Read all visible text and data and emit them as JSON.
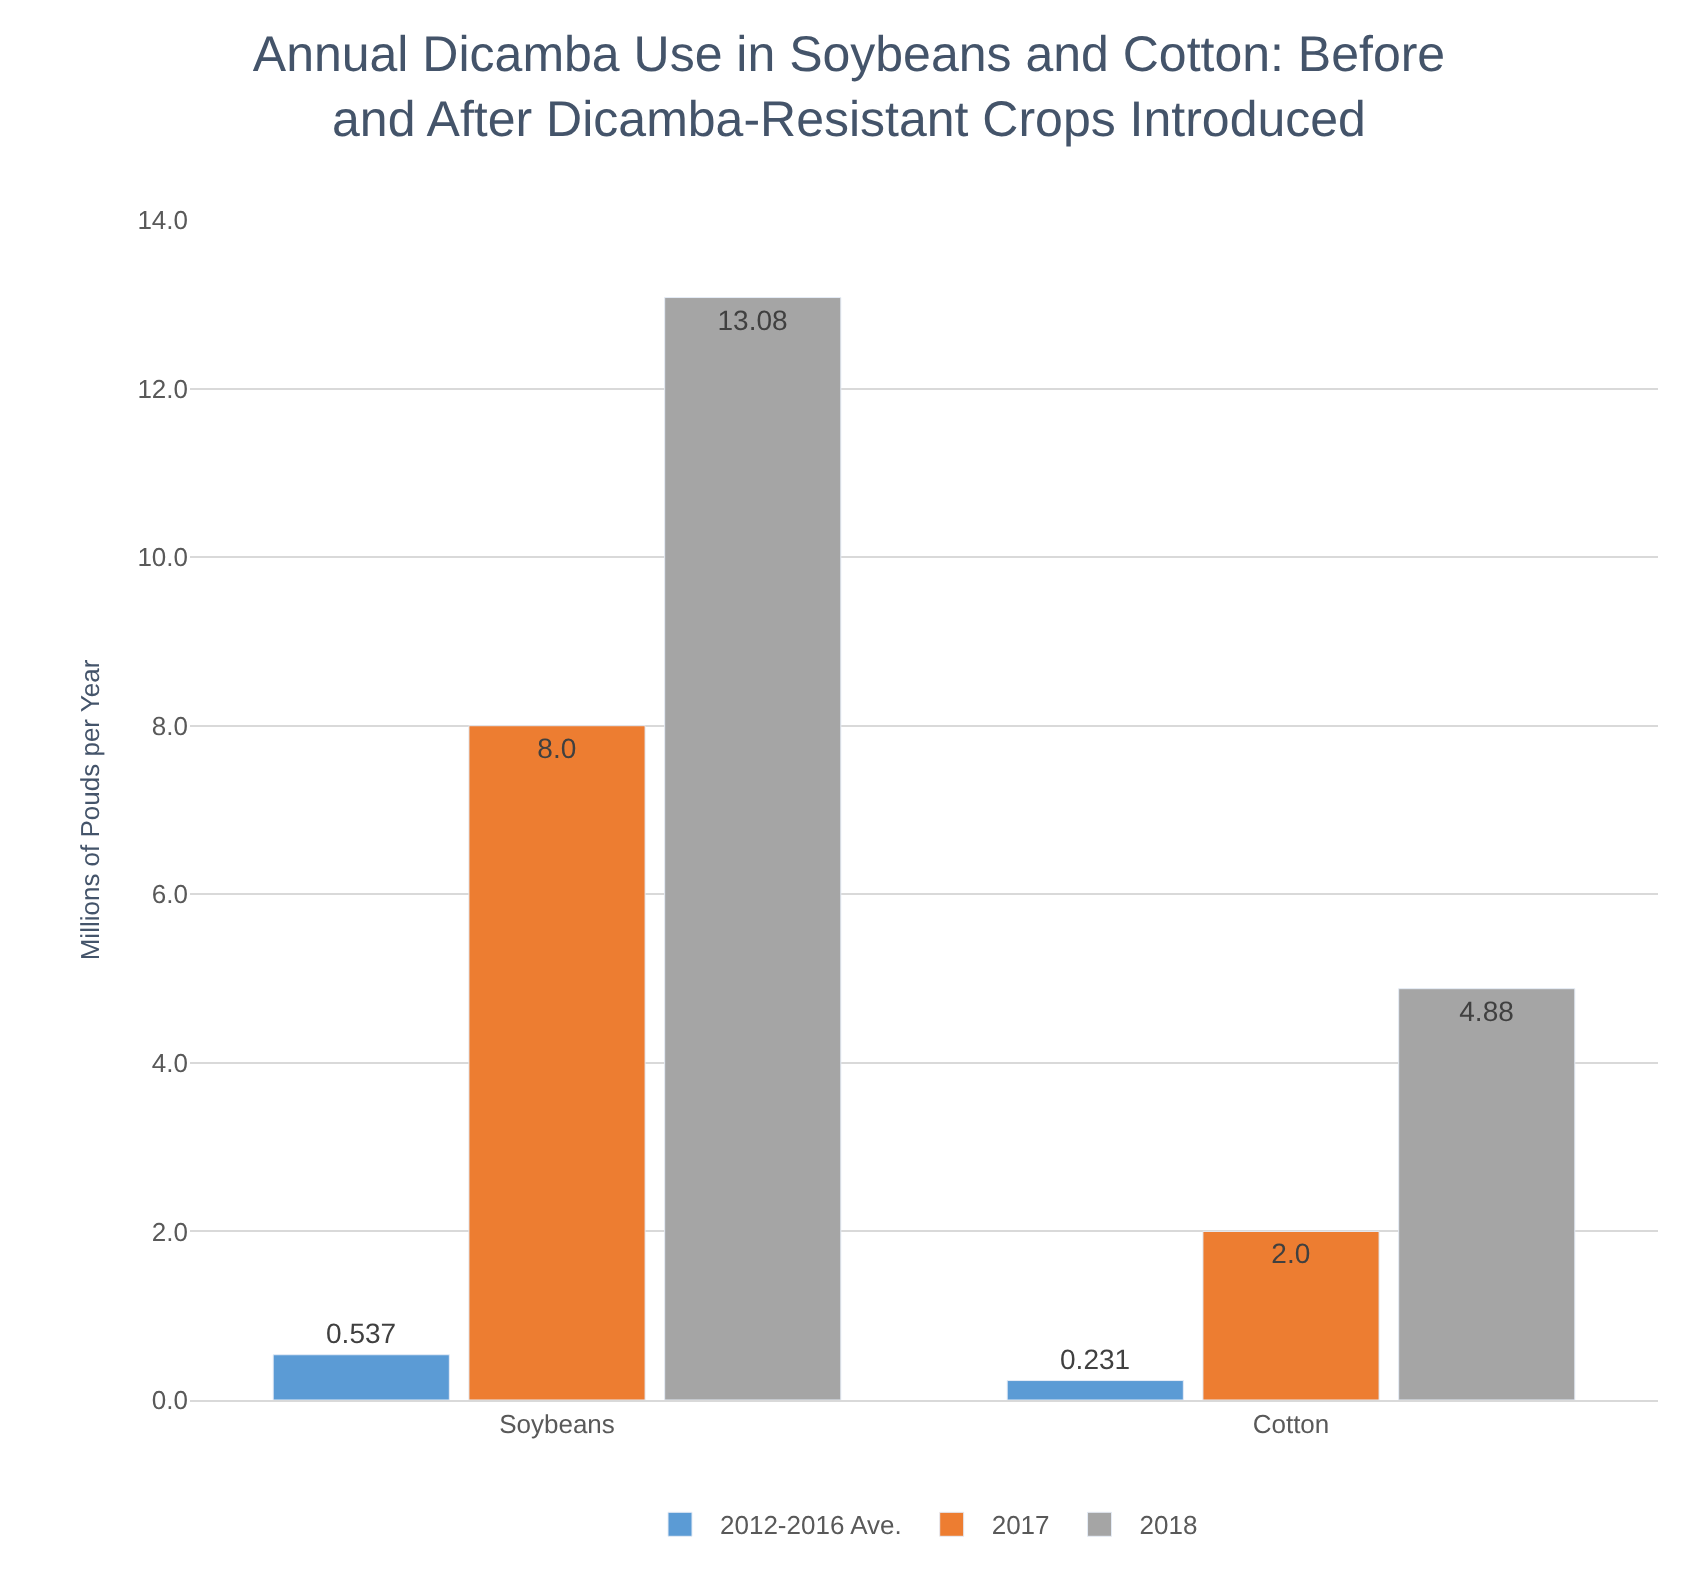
{
  "chart_data": {
    "type": "bar",
    "title": "Annual Dicamba Use in Soybeans and Cotton: Before and After Dicamba-Resistant Crops Introduced",
    "ylabel": "Millions of Pouds per Year",
    "categories": [
      "Soybeans",
      "Cotton"
    ],
    "series": [
      {
        "name": "2012-2016 Ave.",
        "color": "#5b9bd5",
        "values": [
          0.537,
          0.231
        ],
        "value_labels": [
          "0.537",
          "0.231"
        ]
      },
      {
        "name": "2017",
        "color": "#ed7d31",
        "values": [
          8.0,
          2.0
        ],
        "value_labels": [
          "8.0",
          "2.0"
        ]
      },
      {
        "name": "2018",
        "color": "#a5a5a5",
        "values": [
          13.08,
          4.88
        ],
        "value_labels": [
          "13.08",
          "4.88"
        ]
      }
    ],
    "ylim": [
      0,
      14
    ],
    "yticks": [
      {
        "value": 0,
        "label": "0.0"
      },
      {
        "value": 2,
        "label": "2.0"
      },
      {
        "value": 4,
        "label": "4.0"
      },
      {
        "value": 6,
        "label": "6.0"
      },
      {
        "value": 8,
        "label": "8.0"
      },
      {
        "value": 10,
        "label": "10.0"
      },
      {
        "value": 12,
        "label": "12.0"
      },
      {
        "value": 14,
        "label": "14.0"
      }
    ],
    "grid": "y",
    "legend": "bottom"
  }
}
